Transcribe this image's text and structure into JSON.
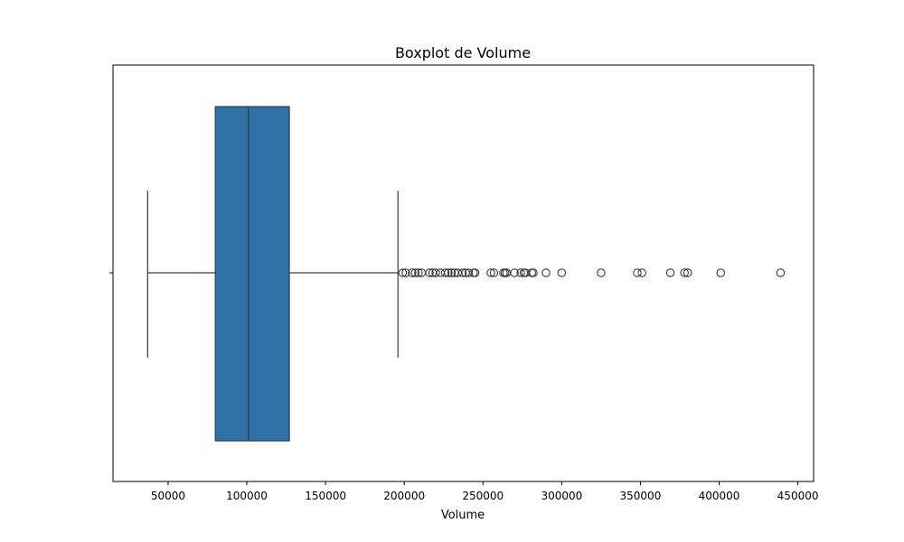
{
  "chart_data": {
    "type": "boxplot",
    "title": "Boxplot de Volume",
    "xlabel": "Volume",
    "ylabel": "",
    "xlim": [
      15000,
      460000
    ],
    "xticks": [
      50000,
      100000,
      150000,
      200000,
      250000,
      300000,
      350000,
      400000,
      450000
    ],
    "xtick_labels": [
      "50000",
      "100000",
      "150000",
      "200000",
      "250000",
      "300000",
      "350000",
      "400000",
      "450000"
    ],
    "grid": false,
    "box": {
      "whisker_low": 37000,
      "q1": 80000,
      "median": 101000,
      "q3": 127000,
      "whisker_high": 196000
    },
    "outliers": [
      199000,
      201000,
      205000,
      207000,
      209000,
      211000,
      216000,
      218000,
      220000,
      223000,
      226000,
      228000,
      230000,
      232000,
      234000,
      237000,
      239000,
      241000,
      244000,
      245000,
      255000,
      257000,
      263000,
      264000,
      265000,
      270000,
      274000,
      276000,
      277000,
      281000,
      282000,
      290000,
      300000,
      325000,
      348000,
      351000,
      369000,
      378000,
      380000,
      401000,
      439000
    ],
    "colors": {
      "box_fill": "#2f72a8",
      "line": "#3a3a3a",
      "axes": "#000000"
    }
  }
}
